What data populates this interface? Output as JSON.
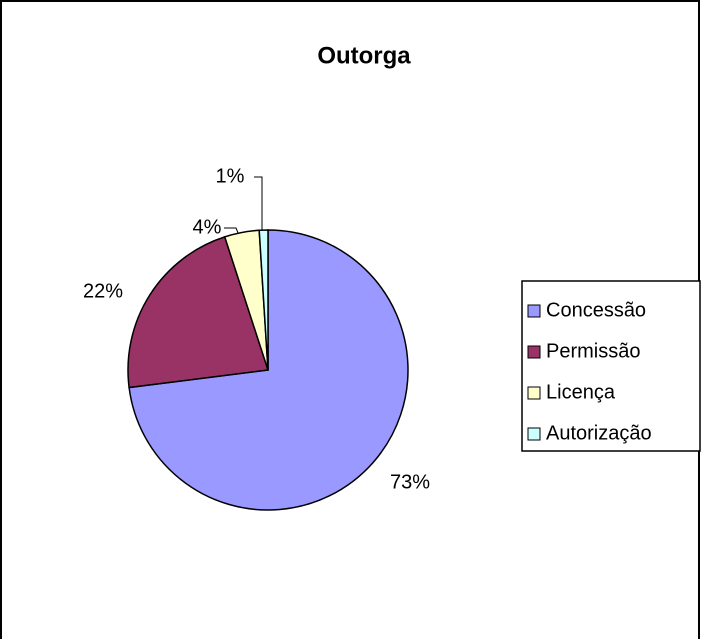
{
  "chart_data": {
    "type": "pie",
    "title": "Outorga",
    "categories": [
      "Concessão",
      "Permissão",
      "Licença",
      "Autorização"
    ],
    "values": [
      73,
      22,
      4,
      1
    ],
    "value_labels": [
      "73%",
      "22%",
      "4%",
      "1%"
    ],
    "colors": [
      "#9999ff",
      "#993366",
      "#ffffcc",
      "#ccffff"
    ],
    "legend": "right"
  }
}
